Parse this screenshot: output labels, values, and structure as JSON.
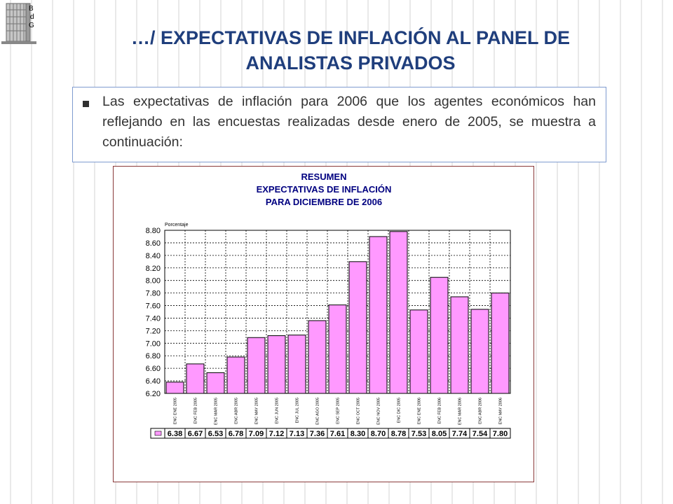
{
  "logo": {
    "letters": [
      "B",
      "d",
      "G"
    ]
  },
  "slide": {
    "title_line1": "…/ EXPECTATIVAS DE INFLACIÓN AL PANEL DE",
    "title_line2": "ANALISTAS PRIVADOS",
    "body": "Las expectativas de inflación para 2006 que los agentes económicos han reflejando en las encuestas realizadas desde enero de 2005, se muestra a continuación:"
  },
  "colors": {
    "title": "#1f3e7c",
    "bar": "#ff99ff",
    "bar_border": "#000000",
    "chart_title": "#000080"
  },
  "chart_data": {
    "type": "bar",
    "title": [
      "RESUMEN",
      "EXPECTATIVAS DE INFLACIÓN",
      "PARA DICIEMBRE DE 2006"
    ],
    "ylabel": "Porcentaje",
    "xlabel": "",
    "ylim": [
      6.2,
      8.8
    ],
    "yticks": [
      "6.20",
      "6.40",
      "6.60",
      "6.80",
      "7.00",
      "7.20",
      "7.40",
      "7.60",
      "7.80",
      "8.00",
      "8.20",
      "8.40",
      "8.60",
      "8.80"
    ],
    "grid": true,
    "categories": [
      "ENC ENE 2005",
      "ENC FEB 2005",
      "ENC MAR 2005",
      "ENC ABR 2005",
      "ENC MAY 2005",
      "ENC JUN 2005",
      "ENC JUL 2005",
      "ENC AGO 2005",
      "ENC SEP 2005",
      "ENC OCT 2005",
      "ENC NOV 2005",
      "ENC DIC 2005",
      "ENC ENE 2006",
      "ENC FEB 2006",
      "ENC MAR 2006",
      "ENC ABR 2006",
      "ENC MAY 2006"
    ],
    "values": [
      6.38,
      6.67,
      6.53,
      6.78,
      7.09,
      7.12,
      7.13,
      7.36,
      7.61,
      8.3,
      8.7,
      8.78,
      7.53,
      8.05,
      7.74,
      7.54,
      7.8
    ],
    "value_labels": [
      "6.38",
      "6.67",
      "6.53",
      "6.78",
      "7.09",
      "7.12",
      "7.13",
      "7.36",
      "7.61",
      "8.30",
      "8.70",
      "8.78",
      "7.53",
      "8.05",
      "7.74",
      "7.54",
      "7.80"
    ],
    "data_table": true
  }
}
